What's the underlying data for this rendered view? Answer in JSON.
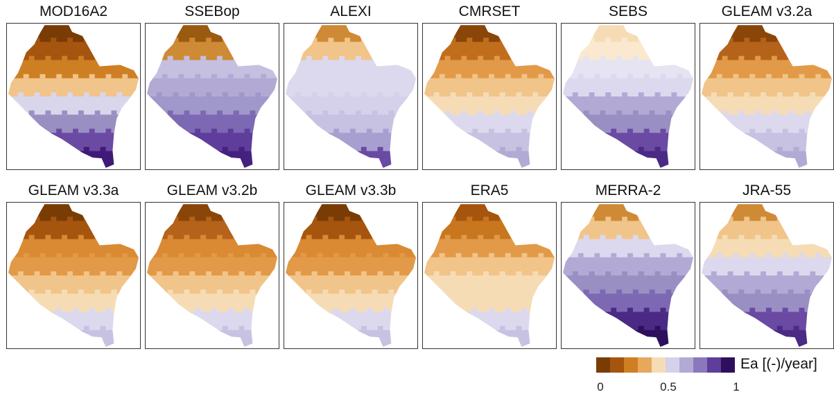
{
  "panels": [
    {
      "title": "MOD16A2",
      "stops": [
        "#7a3c05",
        "#a6550e",
        "#cf7f23",
        "#f1c48a",
        "#d9d6ec",
        "#9a8fc3",
        "#6a4aa3",
        "#3f1a78"
      ]
    },
    {
      "title": "SSEBop",
      "stops": [
        "#9a5a10",
        "#cf8a35",
        "#c5c0e0",
        "#b2aad5",
        "#a097cb",
        "#7d68b3",
        "#5e3d9b",
        "#45217f"
      ]
    },
    {
      "title": "ALEXI",
      "stops": [
        "#cf8a35",
        "#f1c48a",
        "#dcd9ee",
        "#dcd9ee",
        "#d5d1ea",
        "#c7c2e2",
        "#a79fd0",
        "#6a4aa3"
      ]
    },
    {
      "title": "CMRSET",
      "stops": [
        "#8a4508",
        "#c06e1b",
        "#e29a48",
        "#f1c48a",
        "#f6dcb5",
        "#dcd9ee",
        "#c7c2e2",
        "#b2aad5"
      ]
    },
    {
      "title": "SEBS",
      "stops": [
        "#f6dcb5",
        "#fae9cf",
        "#e6e3f2",
        "#dcd9ee",
        "#b2aad5",
        "#9a8fc3",
        "#6a4aa3",
        "#4a2a85"
      ]
    },
    {
      "title": "GLEAM v3.2a",
      "stops": [
        "#8a4508",
        "#b5621a",
        "#e29a48",
        "#f1c48a",
        "#f6dcb5",
        "#dcd9ee",
        "#c7c2e2",
        "#b2aad5"
      ]
    },
    {
      "title": "GLEAM v3.3a",
      "stops": [
        "#7a3c05",
        "#a6550e",
        "#d98a33",
        "#e29a48",
        "#f1c48a",
        "#f6dcb5",
        "#dcd9ee",
        "#c7c2e2"
      ]
    },
    {
      "title": "GLEAM v3.2b",
      "stops": [
        "#8a4508",
        "#b5621a",
        "#d98a33",
        "#e29a48",
        "#f1c48a",
        "#f6dcb5",
        "#dcd9ee",
        "#c7c2e2"
      ]
    },
    {
      "title": "GLEAM v3.3b",
      "stops": [
        "#7a3c05",
        "#a6550e",
        "#d98a33",
        "#e29a48",
        "#f1c48a",
        "#f6dcb5",
        "#dcd9ee",
        "#c7c2e2"
      ]
    },
    {
      "title": "ERA5",
      "stops": [
        "#a6550e",
        "#c8771f",
        "#e29a48",
        "#f1c48a",
        "#f6dcb5",
        "#f6dcb5",
        "#dcd9ee",
        "#c7c2e2"
      ]
    },
    {
      "title": "MERRA-2",
      "stops": [
        "#cf8a35",
        "#f1c48a",
        "#dcd9ee",
        "#b2aad5",
        "#9a8fc3",
        "#7d68b3",
        "#4a2a85",
        "#2d0f5e"
      ]
    },
    {
      "title": "JRA-55",
      "stops": [
        "#cf8a35",
        "#f1c48a",
        "#f6dcb5",
        "#dcd9ee",
        "#b2aad5",
        "#9a8fc3",
        "#6a4aa3",
        "#4a2a85"
      ]
    }
  ],
  "legend": {
    "label": "Ea [(-)/year]",
    "colors": [
      "#7a3c05",
      "#a6550e",
      "#cf7f23",
      "#e8a85c",
      "#f6dcb5",
      "#d5d1ea",
      "#b2aad5",
      "#8a78bd",
      "#5e3d9b",
      "#2d0f5e"
    ],
    "ticks": [
      "0",
      "0.5",
      "1"
    ]
  }
}
